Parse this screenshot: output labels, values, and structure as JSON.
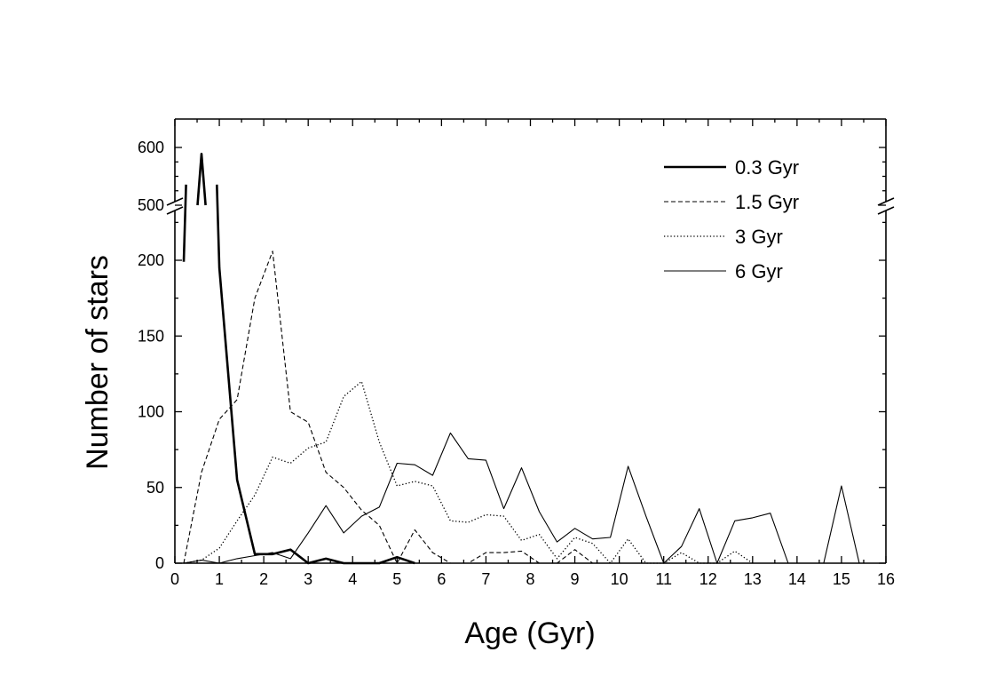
{
  "chart_data": {
    "type": "line",
    "title": "",
    "xlabel": "Age (Gyr)",
    "ylabel": "Number of stars",
    "xlim": [
      0,
      16
    ],
    "ylim": [
      0,
      600
    ],
    "y_axis_break": [
      250,
      500
    ],
    "xticks": [
      0,
      1,
      2,
      3,
      4,
      5,
      6,
      7,
      8,
      9,
      10,
      11,
      12,
      13,
      14,
      15,
      16
    ],
    "yticks_lower": [
      0,
      50,
      100,
      150,
      200
    ],
    "yticks_upper": [
      500,
      600
    ],
    "legend_position": "top-right",
    "grid": false,
    "series": [
      {
        "name": "0.3 Gyr",
        "style": "thick-solid",
        "points": [
          [
            0.2,
            199
          ],
          [
            0.6,
            589
          ],
          [
            1.0,
            195
          ],
          [
            1.4,
            55
          ],
          [
            1.8,
            6
          ],
          [
            2.2,
            6
          ],
          [
            2.6,
            9
          ],
          [
            3.0,
            0
          ],
          [
            3.4,
            3
          ],
          [
            3.8,
            0
          ],
          [
            4.6,
            0
          ],
          [
            5.0,
            4
          ],
          [
            5.4,
            0
          ]
        ]
      },
      {
        "name": "1.5 Gyr",
        "style": "dashed",
        "points": [
          [
            0.2,
            0
          ],
          [
            0.6,
            60
          ],
          [
            1.0,
            95
          ],
          [
            1.4,
            108
          ],
          [
            1.8,
            175
          ],
          [
            2.2,
            206
          ],
          [
            2.6,
            100
          ],
          [
            3.0,
            93
          ],
          [
            3.4,
            60
          ],
          [
            3.8,
            50
          ],
          [
            4.2,
            35
          ],
          [
            4.6,
            25
          ],
          [
            5.0,
            0
          ],
          [
            5.4,
            22
          ],
          [
            5.8,
            7
          ],
          [
            6.2,
            0
          ],
          [
            6.6,
            0
          ],
          [
            7.0,
            7
          ],
          [
            7.4,
            7
          ],
          [
            7.8,
            8
          ],
          [
            8.2,
            0
          ],
          [
            8.6,
            0
          ],
          [
            9.0,
            9
          ],
          [
            9.4,
            0
          ]
        ]
      },
      {
        "name": "3 Gyr",
        "style": "dotted",
        "points": [
          [
            0.2,
            0
          ],
          [
            0.6,
            2
          ],
          [
            1.0,
            10
          ],
          [
            1.4,
            28
          ],
          [
            1.8,
            45
          ],
          [
            2.2,
            70
          ],
          [
            2.6,
            66
          ],
          [
            3.0,
            76
          ],
          [
            3.4,
            80
          ],
          [
            3.8,
            110
          ],
          [
            4.2,
            120
          ],
          [
            4.6,
            80
          ],
          [
            5.0,
            51
          ],
          [
            5.4,
            54
          ],
          [
            5.8,
            51
          ],
          [
            6.2,
            28
          ],
          [
            6.6,
            27
          ],
          [
            7.0,
            32
          ],
          [
            7.4,
            31
          ],
          [
            7.8,
            15
          ],
          [
            8.2,
            19
          ],
          [
            8.6,
            3
          ],
          [
            9.0,
            17
          ],
          [
            9.4,
            13
          ],
          [
            9.8,
            0
          ],
          [
            10.2,
            16
          ],
          [
            10.6,
            0
          ],
          [
            11.0,
            0
          ],
          [
            11.4,
            7
          ],
          [
            11.8,
            0
          ],
          [
            12.2,
            0
          ],
          [
            12.6,
            8
          ],
          [
            13.0,
            0
          ]
        ]
      },
      {
        "name": "6 Gyr",
        "style": "thin-solid",
        "points": [
          [
            0.2,
            0
          ],
          [
            0.6,
            2
          ],
          [
            1.0,
            0
          ],
          [
            1.4,
            3
          ],
          [
            1.8,
            5
          ],
          [
            2.2,
            7
          ],
          [
            2.6,
            3
          ],
          [
            3.0,
            20
          ],
          [
            3.4,
            38
          ],
          [
            3.8,
            20
          ],
          [
            4.2,
            31
          ],
          [
            4.6,
            37
          ],
          [
            5.0,
            66
          ],
          [
            5.4,
            65
          ],
          [
            5.8,
            58
          ],
          [
            6.2,
            86
          ],
          [
            6.6,
            69
          ],
          [
            7.0,
            68
          ],
          [
            7.4,
            36
          ],
          [
            7.8,
            63
          ],
          [
            8.2,
            34
          ],
          [
            8.6,
            14
          ],
          [
            9.0,
            23
          ],
          [
            9.4,
            16
          ],
          [
            9.8,
            17
          ],
          [
            10.2,
            64
          ],
          [
            10.6,
            31
          ],
          [
            11.0,
            0
          ],
          [
            11.4,
            11
          ],
          [
            11.8,
            36
          ],
          [
            12.2,
            0
          ],
          [
            12.6,
            28
          ],
          [
            13.0,
            30
          ],
          [
            13.4,
            33
          ],
          [
            13.8,
            0
          ],
          [
            14.2,
            0
          ],
          [
            14.6,
            0
          ],
          [
            15.0,
            51
          ],
          [
            15.4,
            0
          ]
        ]
      }
    ]
  }
}
